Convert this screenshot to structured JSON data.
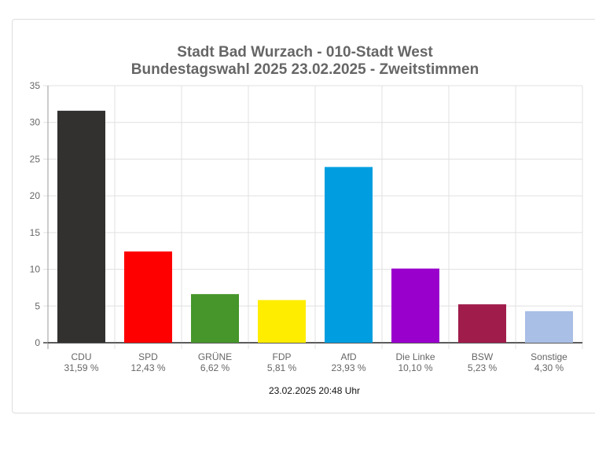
{
  "chart_data": {
    "type": "bar",
    "title": [
      "Stadt Bad Wurzach - 010-Stadt West",
      "Bundestagswahl 2025 23.02.2025  - Zweitstimmen"
    ],
    "categories": [
      "CDU",
      "SPD",
      "GRÜNE",
      "FDP",
      "AfD",
      "Die Linke",
      "BSW",
      "Sonstige"
    ],
    "values": [
      31.59,
      12.43,
      6.62,
      5.81,
      23.93,
      10.1,
      5.23,
      4.3
    ],
    "value_labels": [
      "31,59 %",
      "12,43 %",
      "6,62 %",
      "5,81 %",
      "23,93 %",
      "10,10 %",
      "5,23 %",
      "4,30 %"
    ],
    "colors": [
      "#323130",
      "#ff0000",
      "#46962b",
      "#ffed00",
      "#009ee0",
      "#9900cc",
      "#a01c4b",
      "#aabfe6"
    ],
    "ylim": [
      0,
      35
    ],
    "yticks": [
      0,
      5,
      10,
      15,
      20,
      25,
      30,
      35
    ],
    "grid": true,
    "xlabel": "",
    "ylabel": "",
    "footer": "23.02.2025 20:48 Uhr"
  }
}
